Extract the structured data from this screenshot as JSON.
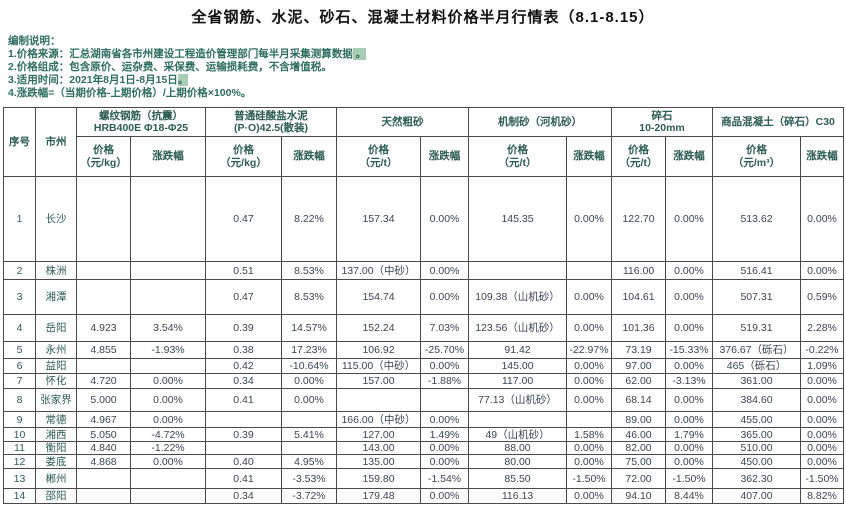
{
  "title": "全省钢筋、水泥、砂石、混凝土材料价格半月行情表（8.1-8.15）",
  "notes": {
    "heading": "编制说明：",
    "items": [
      {
        "text": "1.价格来源：汇总湖南省各市州建设工程造价管理部门每半月采集测算数据",
        "suffix": " 。",
        "highlighted": true
      },
      {
        "text": "2.价格组成：包含原价、运杂费、采保费、运输损耗费，不含增值税。",
        "suffix": "",
        "highlighted": false
      },
      {
        "text": "3.适用时间：2021年8月1日-8月15日",
        "suffix": "。",
        "highlighted": true
      },
      {
        "text": "4.涨跌幅=（当期价格-上期价格）/上期价格×100%。",
        "suffix": "",
        "highlighted": false
      }
    ]
  },
  "table": {
    "corner_headers": [
      "序号",
      "市州"
    ],
    "groups": [
      {
        "title_lines": [
          "螺纹钢筋（抗震）",
          "HRB400E Φ18-Φ25"
        ],
        "price_label_lines": [
          "价格",
          "（元/kg）"
        ],
        "change_label": "涨跌幅"
      },
      {
        "title_lines": [
          "普通硅酸盐水泥",
          "(P·O)42.5(散装)"
        ],
        "price_label_lines": [
          "价格",
          "（元/kg）"
        ],
        "change_label": "涨跌幅"
      },
      {
        "title_lines": [
          "天然粗砂"
        ],
        "price_label_lines": [
          "价格",
          "（元/t）"
        ],
        "change_label": "涨跌幅"
      },
      {
        "title_lines": [
          "机制砂（河机砂）"
        ],
        "price_label_lines": [
          "价格",
          "（元/t）"
        ],
        "change_label": "涨跌幅"
      },
      {
        "title_lines": [
          "碎石",
          "10-20mm"
        ],
        "price_label_lines": [
          "价格",
          "（元/t）"
        ],
        "change_label": "涨跌幅"
      },
      {
        "title_lines": [
          "商品混凝土（碎石）C30"
        ],
        "price_label_lines": [
          "价格",
          "（元/m³）"
        ],
        "change_label": "涨跌幅"
      }
    ],
    "rows": [
      {
        "no": "1",
        "city": "长沙",
        "cells": [
          "",
          "",
          "0.47",
          "8.22%",
          "157.34",
          "0.00%",
          "145.35",
          "0.00%",
          "122.70",
          "0.00%",
          "513.62",
          "0.00%"
        ]
      },
      {
        "no": "2",
        "city": "株洲",
        "cells": [
          "",
          "",
          "0.51",
          "8.53%",
          "137.00（中砂）",
          "0.00%",
          "",
          "",
          "116.00",
          "0.00%",
          "516.41",
          "0.00%"
        ]
      },
      {
        "no": "3",
        "city": "湘潭",
        "cells": [
          "",
          "",
          "0.47",
          "8.53%",
          "154.74",
          "0.00%",
          "109.38（山机砂）",
          "0.00%",
          "104.61",
          "0.00%",
          "507.31",
          "0.59%"
        ]
      },
      {
        "no": "4",
        "city": "岳阳",
        "cells": [
          "4.923",
          "3.54%",
          "0.39",
          "14.57%",
          "152.24",
          "7.03%",
          "123.56（山机砂）",
          "0.00%",
          "101.36",
          "0.00%",
          "519.31",
          "2.28%"
        ]
      },
      {
        "no": "5",
        "city": "永州",
        "cells": [
          "4.855",
          "-1.93%",
          "0.38",
          "17.23%",
          "106.92",
          "-25.70%",
          "91.42",
          "-22.97%",
          "73.19",
          "-15.33%",
          "376.67（砾石）",
          "-0.22%"
        ]
      },
      {
        "no": "6",
        "city": "益阳",
        "cells": [
          "",
          "",
          "0.42",
          "-10.64%",
          "115.00（中砂）",
          "0.00%",
          "145.00",
          "0.00%",
          "97.00",
          "0.00%",
          "465（砾石）",
          "1.09%"
        ]
      },
      {
        "no": "7",
        "city": "怀化",
        "cells": [
          "4.720",
          "0.00%",
          "0.34",
          "0.00%",
          "157.00",
          "-1.88%",
          "117.00",
          "0.00%",
          "62.00",
          "-3.13%",
          "361.00",
          "0.00%"
        ]
      },
      {
        "no": "8",
        "city": "张家界",
        "cells": [
          "5.000",
          "0.00%",
          "0.41",
          "0.00%",
          "",
          "",
          "77.13（山机砂）",
          "0.00%",
          "68.14",
          "0.00%",
          "384.60",
          "0.00%"
        ]
      },
      {
        "no": "9",
        "city": "常德",
        "cells": [
          "4.967",
          "0.00%",
          "",
          "",
          "166.00（中砂）",
          "0.00%",
          "",
          "",
          "89.00",
          "0.00%",
          "455.00",
          "0.00%"
        ]
      },
      {
        "no": "10",
        "city": "湘西",
        "cells": [
          "5.050",
          "-4.72%",
          "0.39",
          "5.41%",
          "127.00",
          "1.49%",
          "49（山机砂）",
          "1.58%",
          "46.00",
          "1.79%",
          "365.00",
          "0.00%"
        ]
      },
      {
        "no": "11",
        "city": "衡阳",
        "cells": [
          "4.840",
          "-1.22%",
          "",
          "",
          "143.00",
          "0.00%",
          "88.00",
          "0.00%",
          "82.00",
          "0.00%",
          "510.00",
          "0.00%"
        ]
      },
      {
        "no": "12",
        "city": "娄底",
        "cells": [
          "4.868",
          "0.00%",
          "0.40",
          "4.95%",
          "135.00",
          "0.00%",
          "80.00",
          "0.00%",
          "75.00",
          "0.00%",
          "450.00",
          "0.00%"
        ]
      },
      {
        "no": "13",
        "city": "郴州",
        "cells": [
          "",
          "",
          "0.41",
          "-3.53%",
          "159.80",
          "-1.54%",
          "85.50",
          "-1.50%",
          "72.00",
          "-1.50%",
          "362.30",
          "-1.50%"
        ]
      },
      {
        "no": "14",
        "city": "邵阳",
        "cells": [
          "",
          "",
          "0.34",
          "-3.72%",
          "179.48",
          "0.00%",
          "116.13",
          "0.00%",
          "94.10",
          "8.44%",
          "407.00",
          "8.82%"
        ]
      }
    ]
  },
  "colors": {
    "note_text": "#2f6e5e",
    "header_text": "#2d5c51",
    "cell_text": "#3c4450",
    "highlight": "#a9cdb4",
    "border": "#4a4a4a"
  }
}
